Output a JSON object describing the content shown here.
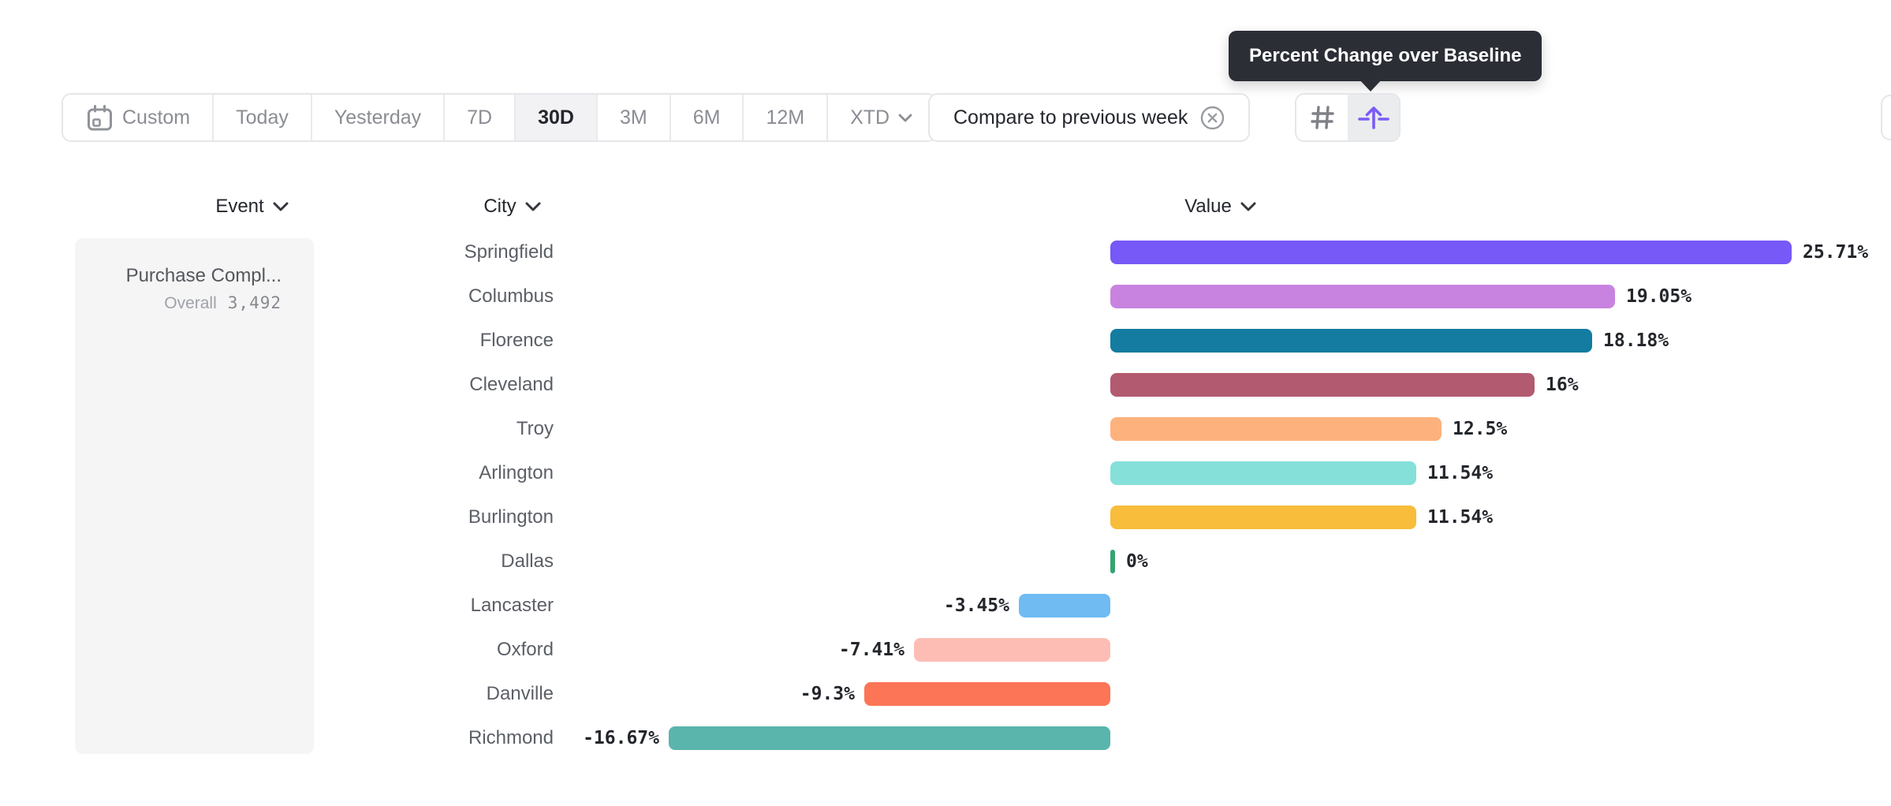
{
  "tooltip": {
    "text": "Percent Change over Baseline"
  },
  "toolbar": {
    "date_ranges": [
      {
        "label": "Custom",
        "icon": "calendar-icon",
        "selected": false
      },
      {
        "label": "Today",
        "selected": false
      },
      {
        "label": "Yesterday",
        "selected": false
      },
      {
        "label": "7D",
        "selected": false
      },
      {
        "label": "30D",
        "selected": true
      },
      {
        "label": "3M",
        "selected": false
      },
      {
        "label": "6M",
        "selected": false
      },
      {
        "label": "12M",
        "selected": false
      },
      {
        "label": "XTD",
        "has_chevron": true,
        "selected": false
      }
    ],
    "compare": {
      "label": "Compare to previous week",
      "dismiss_icon": "dismiss-icon"
    },
    "view_modes": [
      {
        "name": "absolute-numbers",
        "icon": "hash-icon",
        "selected": false
      },
      {
        "name": "percent-change-over-baseline",
        "icon": "baseline-arrow-icon",
        "selected": true
      }
    ]
  },
  "columns": [
    {
      "label": "Event"
    },
    {
      "label": "City"
    },
    {
      "label": "Value"
    }
  ],
  "event_panel": {
    "event_name": "Purchase Compl...",
    "stat_label": "Overall",
    "stat_value": "3,492"
  },
  "chart_data": {
    "type": "bar",
    "orientation": "horizontal",
    "unit": "percent change vs baseline",
    "categories": [
      "Springfield",
      "Columbus",
      "Florence",
      "Cleveland",
      "Troy",
      "Arlington",
      "Burlington",
      "Dallas",
      "Lancaster",
      "Oxford",
      "Danville",
      "Richmond"
    ],
    "values": [
      25.71,
      19.05,
      18.18,
      16,
      12.5,
      11.54,
      11.54,
      0,
      -3.45,
      -7.41,
      -9.3,
      -16.67
    ],
    "value_labels": [
      "25.71%",
      "19.05%",
      "18.18%",
      "16%",
      "12.5%",
      "11.54%",
      "11.54%",
      "0%",
      "-3.45%",
      "-7.41%",
      "-9.3%",
      "-16.67%"
    ],
    "bar_colors": [
      "#7659f6",
      "#c883e0",
      "#137ca0",
      "#b25a70",
      "#fdb27d",
      "#85e0d9",
      "#f7bd3b",
      "#34a470",
      "#6fbbf2",
      "#fdbdb4",
      "#fd7557",
      "#5ab5ac"
    ],
    "xlim": [
      -16.67,
      25.71
    ],
    "grid": false,
    "legend": false
  },
  "colors": {
    "accent_purple": "#7b5bf7",
    "tooltip_bg": "#2b2e35",
    "border": "#e5e6e9",
    "selected_bg": "#f2f2f4",
    "muted_text": "#8a8d93",
    "dark_text": "#24272d",
    "zero_tick_green": "#34a470"
  }
}
